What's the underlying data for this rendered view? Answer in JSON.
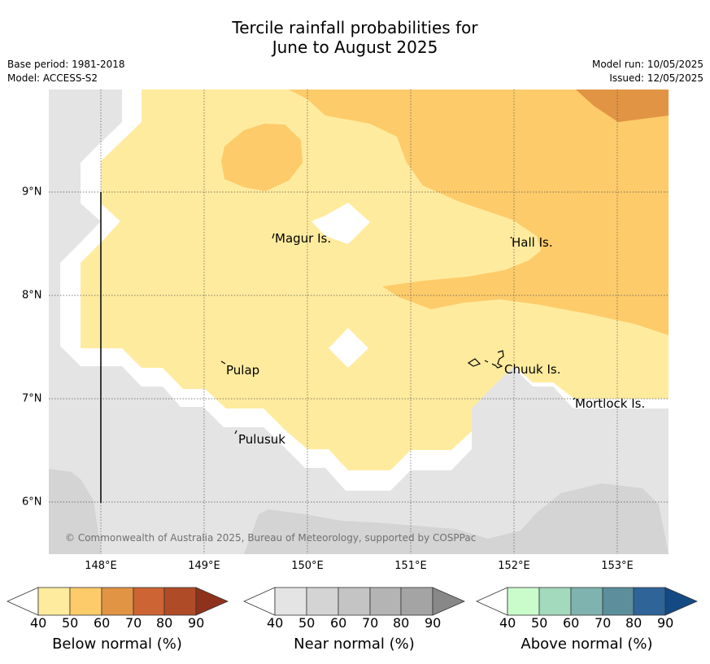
{
  "title_line1": "Tercile rainfall probabilities for",
  "title_line2": "June to August 2025",
  "base_period": "Base period: 1981-2018",
  "model": "Model: ACCESS-S2",
  "model_run": "Model run: 10/05/2025",
  "issued": "Issued: 12/05/2025",
  "copyright": "© Commonwealth of Australia 2025, Bureau of Meteorology, supported by COSPPac",
  "map": {
    "lat_labels": [
      "9°N",
      "8°N",
      "7°N",
      "6°N"
    ],
    "lon_labels": [
      "148°E",
      "149°E",
      "150°E",
      "151°E",
      "152°E",
      "153°E"
    ],
    "places": [
      {
        "name": "Magur Is."
      },
      {
        "name": "Hall Is."
      },
      {
        "name": "Pulap"
      },
      {
        "name": "Chuuk Is."
      },
      {
        "name": "Mortlock Is."
      },
      {
        "name": "Pulusuk"
      }
    ],
    "colors": {
      "below_40_50": "#ffeb9e",
      "below_50_60": "#fdcb6a",
      "below_60_70": "#e19444",
      "near_40_50": "#e4e4e4",
      "near_50_60": "#d4d4d4",
      "ocean_white": "#ffffff"
    }
  },
  "colorbars": [
    {
      "title": "Below normal (%)",
      "ticks": [
        "40",
        "50",
        "60",
        "70",
        "80",
        "90"
      ],
      "colors": [
        "#ffeb9e",
        "#fdcb6a",
        "#e19444",
        "#cc6433",
        "#b04b27",
        "#8f321c"
      ]
    },
    {
      "title": "Near normal (%)",
      "ticks": [
        "40",
        "50",
        "60",
        "70",
        "80",
        "90"
      ],
      "colors": [
        "#e4e4e4",
        "#d4d4d4",
        "#c4c4c4",
        "#b4b4b4",
        "#a4a4a4",
        "#888888"
      ]
    },
    {
      "title": "Above normal (%)",
      "ticks": [
        "40",
        "50",
        "60",
        "70",
        "80",
        "90"
      ],
      "colors": [
        "#c9fbcb",
        "#a3d9bd",
        "#7fb3af",
        "#5c8e9c",
        "#2f6499",
        "#134a84"
      ]
    }
  ]
}
